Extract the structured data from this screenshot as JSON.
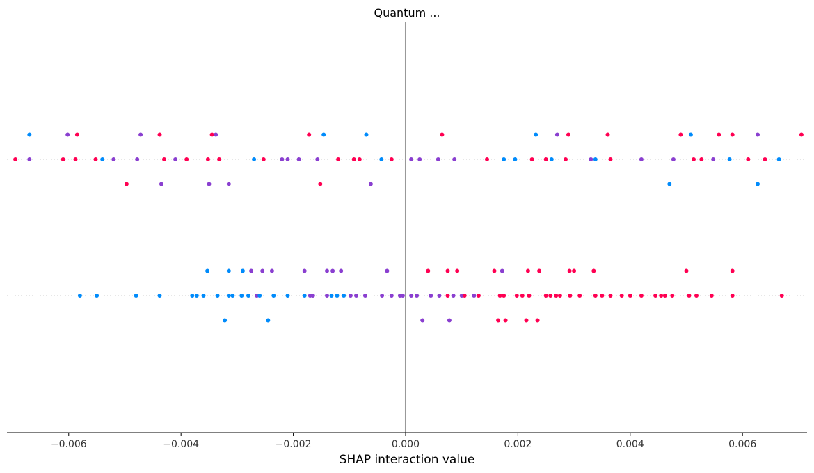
{
  "chart_data": {
    "type": "scatter",
    "title": "Quantum ...",
    "xlabel": "SHAP interaction value",
    "ylabel": "",
    "xlim": [
      -0.0071,
      0.00715
    ],
    "xticks": [
      -0.006,
      -0.004,
      -0.002,
      0.0,
      0.002,
      0.004,
      0.006
    ],
    "xtick_labels": [
      "−0.006",
      "−0.004",
      "−0.002",
      "0.000",
      "0.002",
      "0.004",
      "0.006"
    ],
    "colors": {
      "low": "#008bfb",
      "mid": "#8a3fd0",
      "high": "#ff0052",
      "zero_line": "#999999",
      "row_line": "#cccccc",
      "axis": "#000000"
    },
    "rows": [
      {
        "points": [
          [
            -0.00695,
            0,
            "high"
          ],
          [
            -0.0067,
            0,
            "mid"
          ],
          [
            -0.0067,
            1,
            "low"
          ],
          [
            -0.0061,
            0,
            "high"
          ],
          [
            -0.00602,
            1,
            "mid"
          ],
          [
            -0.00588,
            0,
            "high"
          ],
          [
            -0.00585,
            1,
            "high"
          ],
          [
            -0.00552,
            0,
            "high"
          ],
          [
            -0.0054,
            0,
            "low"
          ],
          [
            -0.0052,
            0,
            "mid"
          ],
          [
            -0.00497,
            -1,
            "high"
          ],
          [
            -0.00478,
            0,
            "mid"
          ],
          [
            -0.00472,
            1,
            "mid"
          ],
          [
            -0.00438,
            1,
            "high"
          ],
          [
            -0.00435,
            -1,
            "mid"
          ],
          [
            -0.0043,
            0,
            "high"
          ],
          [
            -0.0041,
            0,
            "mid"
          ],
          [
            -0.0039,
            0,
            "high"
          ],
          [
            -0.00352,
            0,
            "high"
          ],
          [
            -0.0035,
            -1,
            "mid"
          ],
          [
            -0.00345,
            1,
            "high"
          ],
          [
            -0.00338,
            1,
            "mid"
          ],
          [
            -0.00332,
            0,
            "high"
          ],
          [
            -0.00315,
            -1,
            "mid"
          ],
          [
            -0.0027,
            0,
            "low"
          ],
          [
            -0.00253,
            0,
            "high"
          ],
          [
            -0.0022,
            0,
            "mid"
          ],
          [
            -0.0021,
            0,
            "mid"
          ],
          [
            -0.0019,
            0,
            "mid"
          ],
          [
            -0.00172,
            1,
            "high"
          ],
          [
            -0.00157,
            0,
            "mid"
          ],
          [
            -0.00152,
            -1,
            "high"
          ],
          [
            -0.00146,
            1,
            "low"
          ],
          [
            -0.0012,
            0,
            "high"
          ],
          [
            -0.00092,
            0,
            "high"
          ],
          [
            -0.00082,
            0,
            "high"
          ],
          [
            -0.0007,
            1,
            "low"
          ],
          [
            -0.00043,
            0,
            "low"
          ],
          [
            -0.00062,
            -1,
            "mid"
          ],
          [
            -0.00025,
            0,
            "high"
          ],
          [
            0.0001,
            0,
            "mid"
          ],
          [
            0.00025,
            0,
            "mid"
          ],
          [
            0.00058,
            0,
            "mid"
          ],
          [
            0.00065,
            1,
            "high"
          ],
          [
            0.00087,
            0,
            "mid"
          ],
          [
            0.00145,
            0,
            "high"
          ],
          [
            0.00175,
            0,
            "low"
          ],
          [
            0.00195,
            0,
            "low"
          ],
          [
            0.00225,
            0,
            "high"
          ],
          [
            0.00232,
            1,
            "low"
          ],
          [
            0.0025,
            0,
            "high"
          ],
          [
            0.0026,
            0,
            "low"
          ],
          [
            0.0027,
            1,
            "mid"
          ],
          [
            0.00285,
            0,
            "high"
          ],
          [
            0.0029,
            1,
            "high"
          ],
          [
            0.0033,
            0,
            "mid"
          ],
          [
            0.00338,
            0,
            "low"
          ],
          [
            0.0036,
            1,
            "high"
          ],
          [
            0.00365,
            0,
            "high"
          ],
          [
            0.0042,
            0,
            "mid"
          ],
          [
            0.0047,
            -1,
            "low"
          ],
          [
            0.00477,
            0,
            "mid"
          ],
          [
            0.0049,
            1,
            "high"
          ],
          [
            0.00508,
            1,
            "low"
          ],
          [
            0.00513,
            0,
            "high"
          ],
          [
            0.00527,
            0,
            "high"
          ],
          [
            0.00548,
            0,
            "mid"
          ],
          [
            0.00558,
            1,
            "high"
          ],
          [
            0.00577,
            0,
            "low"
          ],
          [
            0.00582,
            1,
            "high"
          ],
          [
            0.0061,
            0,
            "high"
          ],
          [
            0.00627,
            1,
            "mid"
          ],
          [
            0.00627,
            -1,
            "low"
          ],
          [
            0.0064,
            0,
            "high"
          ],
          [
            0.00665,
            0,
            "low"
          ],
          [
            0.00705,
            1,
            "high"
          ]
        ]
      },
      {
        "points": [
          [
            -0.0058,
            0,
            "low"
          ],
          [
            -0.0055,
            0,
            "low"
          ],
          [
            -0.0048,
            0,
            "low"
          ],
          [
            -0.00438,
            0,
            "low"
          ],
          [
            -0.0038,
            0,
            "low"
          ],
          [
            -0.00372,
            0,
            "low"
          ],
          [
            -0.0036,
            0,
            "low"
          ],
          [
            -0.00353,
            1,
            "low"
          ],
          [
            -0.00335,
            0,
            "low"
          ],
          [
            -0.00322,
            -1,
            "low"
          ],
          [
            -0.00315,
            1,
            "low"
          ],
          [
            -0.00315,
            0,
            "low"
          ],
          [
            -0.00308,
            0,
            "low"
          ],
          [
            -0.00292,
            0,
            "low"
          ],
          [
            -0.0029,
            1,
            "low"
          ],
          [
            -0.0028,
            0,
            "low"
          ],
          [
            -0.00275,
            1,
            "mid"
          ],
          [
            -0.00265,
            0,
            "mid"
          ],
          [
            -0.0026,
            0,
            "low"
          ],
          [
            -0.00255,
            1,
            "mid"
          ],
          [
            -0.00245,
            -1,
            "low"
          ],
          [
            -0.00238,
            1,
            "mid"
          ],
          [
            -0.00235,
            0,
            "low"
          ],
          [
            -0.0021,
            0,
            "low"
          ],
          [
            -0.0018,
            1,
            "mid"
          ],
          [
            -0.0018,
            0,
            "low"
          ],
          [
            -0.0017,
            0,
            "mid"
          ],
          [
            -0.00165,
            0,
            "mid"
          ],
          [
            -0.0014,
            1,
            "mid"
          ],
          [
            -0.0014,
            0,
            "mid"
          ],
          [
            -0.00132,
            0,
            "low"
          ],
          [
            -0.0013,
            1,
            "mid"
          ],
          [
            -0.00122,
            0,
            "low"
          ],
          [
            -0.00115,
            1,
            "mid"
          ],
          [
            -0.0011,
            0,
            "low"
          ],
          [
            -0.00098,
            0,
            "mid"
          ],
          [
            -0.00088,
            0,
            "mid"
          ],
          [
            -0.00072,
            0,
            "mid"
          ],
          [
            -0.00042,
            0,
            "mid"
          ],
          [
            -0.00033,
            1,
            "mid"
          ],
          [
            -0.00025,
            0,
            "mid"
          ],
          [
            -0.0001,
            0,
            "mid"
          ],
          [
            -5e-05,
            0,
            "mid"
          ],
          [
            0.0001,
            0,
            "mid"
          ],
          [
            0.0002,
            0,
            "mid"
          ],
          [
            0.0003,
            -1,
            "mid"
          ],
          [
            0.0004,
            1,
            "high"
          ],
          [
            0.00045,
            0,
            "mid"
          ],
          [
            0.0006,
            0,
            "mid"
          ],
          [
            0.00075,
            1,
            "high"
          ],
          [
            0.00075,
            0,
            "high"
          ],
          [
            0.00078,
            -1,
            "mid"
          ],
          [
            0.00085,
            0,
            "mid"
          ],
          [
            0.00092,
            1,
            "high"
          ],
          [
            0.001,
            0,
            "mid"
          ],
          [
            0.00105,
            0,
            "high"
          ],
          [
            0.00122,
            0,
            "mid"
          ],
          [
            0.0013,
            0,
            "high"
          ],
          [
            0.00158,
            1,
            "high"
          ],
          [
            0.00165,
            -1,
            "high"
          ],
          [
            0.00168,
            0,
            "high"
          ],
          [
            0.00172,
            1,
            "mid"
          ],
          [
            0.00175,
            0,
            "high"
          ],
          [
            0.00178,
            -1,
            "high"
          ],
          [
            0.00198,
            0,
            "high"
          ],
          [
            0.00208,
            0,
            "high"
          ],
          [
            0.00215,
            -1,
            "high"
          ],
          [
            0.00218,
            1,
            "high"
          ],
          [
            0.0022,
            0,
            "high"
          ],
          [
            0.00235,
            -1,
            "high"
          ],
          [
            0.00238,
            1,
            "high"
          ],
          [
            0.0025,
            0,
            "high"
          ],
          [
            0.00258,
            0,
            "high"
          ],
          [
            0.00268,
            0,
            "high"
          ],
          [
            0.00275,
            0,
            "high"
          ],
          [
            0.00292,
            1,
            "high"
          ],
          [
            0.00293,
            0,
            "high"
          ],
          [
            0.003,
            1,
            "high"
          ],
          [
            0.0031,
            0,
            "high"
          ],
          [
            0.00335,
            1,
            "high"
          ],
          [
            0.00338,
            0,
            "high"
          ],
          [
            0.0035,
            0,
            "high"
          ],
          [
            0.00365,
            0,
            "high"
          ],
          [
            0.00385,
            0,
            "high"
          ],
          [
            0.004,
            0,
            "high"
          ],
          [
            0.0042,
            0,
            "high"
          ],
          [
            0.00445,
            0,
            "high"
          ],
          [
            0.00455,
            0,
            "high"
          ],
          [
            0.00462,
            0,
            "high"
          ],
          [
            0.00475,
            0,
            "high"
          ],
          [
            0.005,
            1,
            "high"
          ],
          [
            0.00505,
            0,
            "high"
          ],
          [
            0.00518,
            0,
            "high"
          ],
          [
            0.00545,
            0,
            "high"
          ],
          [
            0.00582,
            1,
            "high"
          ],
          [
            0.00582,
            0,
            "high"
          ],
          [
            0.0067,
            0,
            "high"
          ]
        ]
      }
    ]
  }
}
